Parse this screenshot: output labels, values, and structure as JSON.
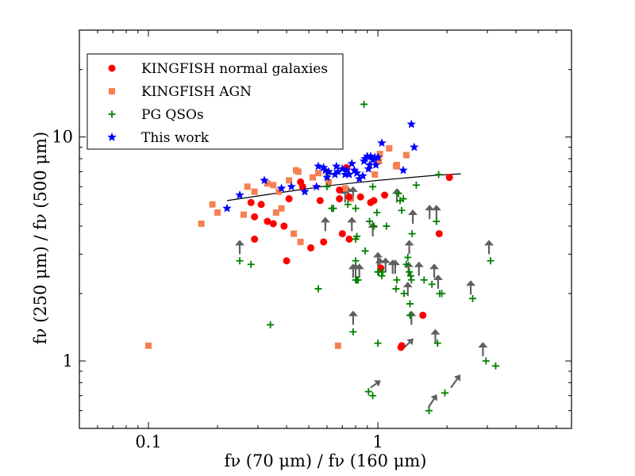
{
  "chart_data": {
    "type": "scatter",
    "xscale": "log",
    "yscale": "log",
    "xlim": [
      0.05,
      6.98
    ],
    "ylim": [
      0.5,
      30
    ],
    "xticks": [
      {
        "value": 0.1,
        "label": "0.1"
      },
      {
        "value": 1,
        "label": "1"
      }
    ],
    "yticks": [
      {
        "value": 1,
        "label": "1"
      },
      {
        "value": 10,
        "label": "10"
      }
    ],
    "xlabel": "fν (70 μm) / fν (160 μm)",
    "ylabel": "fν (250 μm) / fν (500 μm)",
    "legend_position": "top-left",
    "grid": false,
    "series": [
      {
        "name": "KINGFISH normal galaxies",
        "marker": "circle",
        "color": "#ff0000",
        "points": [
          [
            0.28,
            5.1
          ],
          [
            0.31,
            5.0
          ],
          [
            0.33,
            4.2
          ],
          [
            0.29,
            4.4
          ],
          [
            0.35,
            4.1
          ],
          [
            0.39,
            4.0
          ],
          [
            0.41,
            5.3
          ],
          [
            0.47,
            6.0
          ],
          [
            0.46,
            6.3
          ],
          [
            0.29,
            3.5
          ],
          [
            0.4,
            2.8
          ],
          [
            0.51,
            3.2
          ],
          [
            0.56,
            5.2
          ],
          [
            0.58,
            3.4
          ],
          [
            0.68,
            5.3
          ],
          [
            0.68,
            5.8
          ],
          [
            0.7,
            3.7
          ],
          [
            0.73,
            7.3
          ],
          [
            0.75,
            3.5
          ],
          [
            0.75,
            5.4
          ],
          [
            0.84,
            5.4
          ],
          [
            0.93,
            5.1
          ],
          [
            0.96,
            5.2
          ],
          [
            1.07,
            5.5
          ],
          [
            1.03,
            2.6
          ],
          [
            1.26,
            1.15
          ],
          [
            1.27,
            1.17
          ],
          [
            1.57,
            1.6
          ],
          [
            1.85,
            3.7
          ],
          [
            2.05,
            6.6
          ]
        ]
      },
      {
        "name": "KINGFISH AGN",
        "marker": "square",
        "color": "#f58052",
        "points": [
          [
            0.1,
            1.17
          ],
          [
            0.17,
            4.1
          ],
          [
            0.19,
            5.0
          ],
          [
            0.2,
            4.6
          ],
          [
            0.26,
            4.5
          ],
          [
            0.27,
            6.0
          ],
          [
            0.29,
            5.7
          ],
          [
            0.33,
            6.2
          ],
          [
            0.35,
            6.1
          ],
          [
            0.36,
            4.6
          ],
          [
            0.38,
            4.8
          ],
          [
            0.37,
            5.7
          ],
          [
            0.41,
            6.4
          ],
          [
            0.43,
            3.7
          ],
          [
            0.44,
            7.1
          ],
          [
            0.45,
            7.0
          ],
          [
            0.46,
            3.4
          ],
          [
            0.52,
            6.6
          ],
          [
            0.55,
            6.9
          ],
          [
            0.61,
            6.3
          ],
          [
            0.67,
            1.17
          ],
          [
            0.72,
            5.9
          ],
          [
            0.76,
            5.3
          ],
          [
            0.97,
            6.8
          ],
          [
            1.0,
            8.0
          ],
          [
            1.01,
            7.8
          ],
          [
            1.02,
            8.4
          ],
          [
            1.12,
            8.9
          ],
          [
            1.2,
            7.4
          ],
          [
            1.21,
            7.5
          ],
          [
            1.33,
            8.3
          ]
        ]
      },
      {
        "name": "PG QSOs",
        "marker": "plus",
        "color": "#008000",
        "points": [
          [
            0.87,
            14.0
          ],
          [
            1.38,
            1.6
          ],
          [
            0.34,
            1.45
          ],
          [
            0.55,
            2.1
          ],
          [
            0.28,
            2.7
          ],
          [
            0.25,
            2.8
          ],
          [
            0.6,
            6.0
          ],
          [
            0.63,
            4.8
          ],
          [
            0.64,
            4.8
          ],
          [
            0.74,
            5.0
          ],
          [
            0.8,
            4.8
          ],
          [
            0.78,
            1.35
          ],
          [
            0.8,
            2.3
          ],
          [
            0.81,
            2.3
          ],
          [
            0.82,
            2.3
          ],
          [
            0.8,
            2.8
          ],
          [
            0.8,
            3.5
          ],
          [
            0.81,
            3.6
          ],
          [
            0.88,
            3.1
          ],
          [
            0.92,
            4.2
          ],
          [
            0.96,
            4.0
          ],
          [
            0.95,
            6.0
          ],
          [
            0.99,
            4.6
          ],
          [
            1.0,
            2.5
          ],
          [
            1.01,
            2.5
          ],
          [
            1.04,
            2.4
          ],
          [
            1.05,
            2.5
          ],
          [
            1.09,
            4.0
          ],
          [
            1.0,
            1.2
          ],
          [
            1.2,
            2.1
          ],
          [
            1.21,
            2.3
          ],
          [
            1.23,
            5.6
          ],
          [
            1.25,
            5.2
          ],
          [
            1.27,
            4.7
          ],
          [
            1.29,
            5.3
          ],
          [
            1.3,
            2.0
          ],
          [
            1.33,
            2.7
          ],
          [
            1.35,
            2.9
          ],
          [
            1.37,
            2.5
          ],
          [
            1.38,
            1.8
          ],
          [
            1.39,
            2.4
          ],
          [
            1.4,
            2.3
          ],
          [
            1.41,
            3.7
          ],
          [
            1.47,
            6.1
          ],
          [
            1.59,
            2.3
          ],
          [
            1.67,
            0.6
          ],
          [
            1.72,
            2.2
          ],
          [
            1.8,
            4.2
          ],
          [
            1.82,
            1.2
          ],
          [
            1.86,
            2.0
          ],
          [
            1.84,
            6.8
          ],
          [
            1.9,
            2.0
          ],
          [
            0.91,
            0.73
          ],
          [
            0.95,
            0.7
          ],
          [
            1.96,
            0.72
          ],
          [
            2.59,
            1.9
          ],
          [
            2.96,
            1.0
          ],
          [
            3.1,
            2.8
          ],
          [
            3.26,
            0.95
          ]
        ]
      },
      {
        "name": "This work",
        "marker": "star",
        "color": "#0000ff",
        "points": [
          [
            0.22,
            4.8
          ],
          [
            0.25,
            5.5
          ],
          [
            0.32,
            6.4
          ],
          [
            0.38,
            5.9
          ],
          [
            0.42,
            6.0
          ],
          [
            0.48,
            5.7
          ],
          [
            0.54,
            6.0
          ],
          [
            0.55,
            7.4
          ],
          [
            0.58,
            7.3
          ],
          [
            0.59,
            7.1
          ],
          [
            0.6,
            6.6
          ],
          [
            0.61,
            7.0
          ],
          [
            0.65,
            6.8
          ],
          [
            0.66,
            7.4
          ],
          [
            0.67,
            7.0
          ],
          [
            0.7,
            7.2
          ],
          [
            0.72,
            6.8
          ],
          [
            0.73,
            7.1
          ],
          [
            0.75,
            6.8
          ],
          [
            0.77,
            7.6
          ],
          [
            0.79,
            7.1
          ],
          [
            0.81,
            6.9
          ],
          [
            0.83,
            6.5
          ],
          [
            0.86,
            6.7
          ],
          [
            0.87,
            7.8
          ],
          [
            0.88,
            8.0
          ],
          [
            0.9,
            8.2
          ],
          [
            0.91,
            7.2
          ],
          [
            0.92,
            7.5
          ],
          [
            0.93,
            8.2
          ],
          [
            0.95,
            7.9
          ],
          [
            0.97,
            8.1
          ],
          [
            0.98,
            7.5
          ],
          [
            1.0,
            8.1
          ],
          [
            1.04,
            9.4
          ],
          [
            1.29,
            7.1
          ],
          [
            1.4,
            11.4
          ],
          [
            1.44,
            9.0
          ]
        ]
      }
    ],
    "lower_limits": [
      [
        0.25,
        3.0
      ],
      [
        0.59,
        3.8
      ],
      [
        0.61,
        6.2
      ],
      [
        0.72,
        5.1
      ],
      [
        0.74,
        5.2
      ],
      [
        0.78,
        5.2
      ],
      [
        0.77,
        3.8
      ],
      [
        0.78,
        1.45
      ],
      [
        0.78,
        2.35
      ],
      [
        0.8,
        2.35
      ],
      [
        0.83,
        2.35
      ],
      [
        0.95,
        3.6
      ],
      [
        1.0,
        2.65
      ],
      [
        1.02,
        2.5
      ],
      [
        1.08,
        2.5
      ],
      [
        1.16,
        2.45
      ],
      [
        1.19,
        2.45
      ],
      [
        1.21,
        5.1
      ],
      [
        1.35,
        1.95
      ],
      [
        1.36,
        2.4
      ],
      [
        1.37,
        3.0
      ],
      [
        1.4,
        1.45
      ],
      [
        1.42,
        4.1
      ],
      [
        1.51,
        2.4
      ],
      [
        1.68,
        4.3
      ],
      [
        1.8,
        4.3
      ],
      [
        1.76,
        2.35
      ],
      [
        1.78,
        1.2
      ],
      [
        1.83,
        2.1
      ],
      [
        2.54,
        1.98
      ],
      [
        2.87,
        1.05
      ],
      [
        3.05,
        3.0
      ]
    ],
    "diagonal_limits": [
      [
        1.27,
        1.12,
        1.43,
        1.26
      ],
      [
        0.93,
        0.76,
        1.03,
        0.82
      ],
      [
        1.66,
        0.62,
        1.81,
        0.71
      ],
      [
        2.08,
        0.76,
        2.29,
        0.87
      ]
    ],
    "fit_line": {
      "x": [
        0.22,
        0.4,
        0.6,
        0.8,
        1.0,
        1.4,
        1.8,
        2.3
      ],
      "y": [
        5.2,
        5.7,
        6.05,
        6.25,
        6.4,
        6.6,
        6.75,
        6.85
      ]
    }
  }
}
